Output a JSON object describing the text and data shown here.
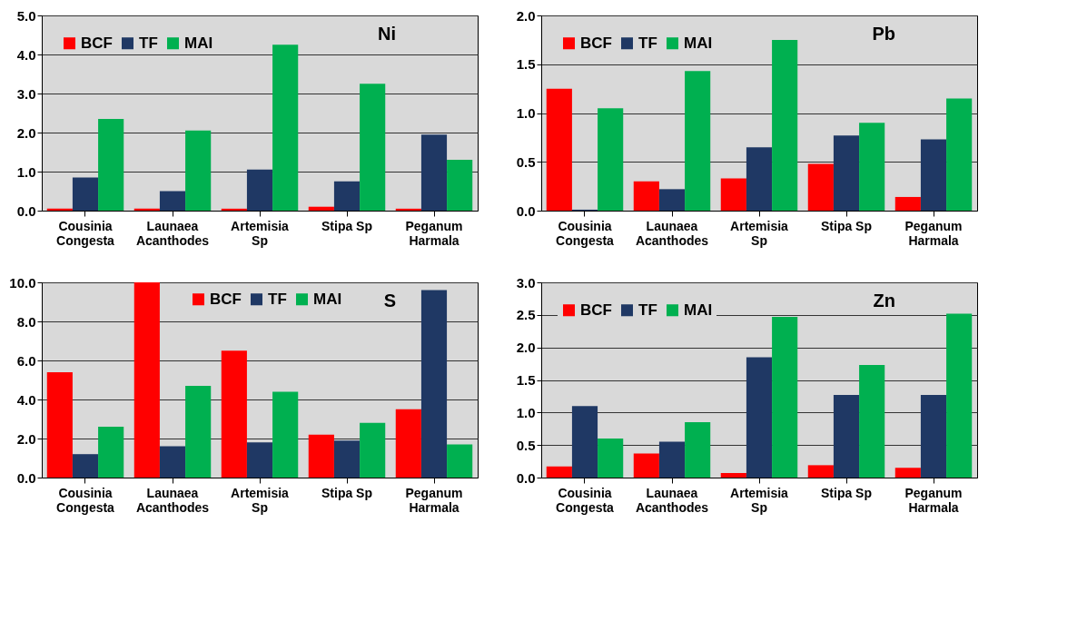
{
  "chart_data": [
    {
      "type": "bar",
      "title": "Ni",
      "categories": [
        "Cousinia\nCongesta",
        "Launaea\nAcanthodes",
        "Artemisia\nSp",
        "Stipa Sp",
        "Peganum\nHarmala"
      ],
      "series": [
        {
          "name": "BCF",
          "color": "#ff0000",
          "values": [
            0.05,
            0.05,
            0.05,
            0.1,
            0.05
          ]
        },
        {
          "name": "TF",
          "color": "#1f3864",
          "values": [
            0.85,
            0.5,
            1.05,
            0.75,
            1.95
          ]
        },
        {
          "name": "MAI",
          "color": "#00b050",
          "values": [
            2.35,
            2.05,
            4.25,
            3.25,
            1.3
          ]
        }
      ],
      "ylim": [
        0,
        5
      ],
      "yticks": [
        {
          "value": 0,
          "label": "0.0"
        },
        {
          "value": 1,
          "label": "1.0"
        },
        {
          "value": 2,
          "label": "2.0"
        },
        {
          "value": 3,
          "label": "3.0"
        },
        {
          "value": 4,
          "label": "4.0"
        },
        {
          "value": 5,
          "label": "5.0"
        }
      ],
      "grid": "y",
      "legend": "top left"
    },
    {
      "type": "bar",
      "title": "Pb",
      "categories": [
        "Cousinia\nCongesta",
        "Launaea\nAcanthodes",
        "Artemisia\nSp",
        "Stipa Sp",
        "Peganum\nHarmala"
      ],
      "series": [
        {
          "name": "BCF",
          "color": "#ff0000",
          "values": [
            1.25,
            0.3,
            0.33,
            0.48,
            0.14
          ]
        },
        {
          "name": "TF",
          "color": "#1f3864",
          "values": [
            0.01,
            0.22,
            0.65,
            0.77,
            0.73
          ]
        },
        {
          "name": "MAI",
          "color": "#00b050",
          "values": [
            1.05,
            1.43,
            1.75,
            0.9,
            1.15
          ]
        }
      ],
      "ylim": [
        0,
        2
      ],
      "yticks": [
        {
          "value": 0,
          "label": "0.0"
        },
        0.5,
        {
          "value": 1,
          "label": "1.0"
        },
        1.5,
        {
          "value": 2,
          "label": "2.0"
        }
      ],
      "grid": "y",
      "legend": "top left"
    },
    {
      "type": "bar",
      "title": "S",
      "categories": [
        "Cousinia\nCongesta",
        "Launaea\nAcanthodes",
        "Artemisia\nSp",
        "Stipa Sp",
        "Peganum\nHarmala"
      ],
      "series": [
        {
          "name": "BCF",
          "color": "#ff0000",
          "values": [
            5.4,
            10.0,
            6.5,
            2.2,
            3.5
          ]
        },
        {
          "name": "TF",
          "color": "#1f3864",
          "values": [
            1.2,
            1.6,
            1.8,
            1.9,
            9.6
          ]
        },
        {
          "name": "MAI",
          "color": "#00b050",
          "values": [
            2.6,
            4.7,
            4.4,
            2.8,
            1.7
          ]
        }
      ],
      "ylim": [
        0,
        10
      ],
      "yticks": [
        {
          "value": 0,
          "label": "0.0"
        },
        {
          "value": 2,
          "label": "2.0"
        },
        {
          "value": 4,
          "label": "4.0"
        },
        {
          "value": 6,
          "label": "6.0"
        },
        {
          "value": 8,
          "label": "8.0"
        },
        {
          "value": 10,
          "label": "10.0"
        }
      ],
      "grid": "y",
      "legend": "top"
    },
    {
      "type": "bar",
      "title": "Zn",
      "categories": [
        "Cousinia\nCongesta",
        "Launaea\nAcanthodes",
        "Artemisia\nSp",
        "Stipa Sp",
        "Peganum\nHarmala"
      ],
      "series": [
        {
          "name": "BCF",
          "color": "#ff0000",
          "values": [
            0.17,
            0.37,
            0.07,
            0.19,
            0.15
          ]
        },
        {
          "name": "TF",
          "color": "#1f3864",
          "values": [
            1.1,
            0.55,
            1.85,
            1.27,
            1.27
          ]
        },
        {
          "name": "MAI",
          "color": "#00b050",
          "values": [
            0.6,
            0.85,
            2.47,
            1.73,
            2.52
          ]
        }
      ],
      "ylim": [
        0,
        3
      ],
      "yticks": [
        {
          "value": 0,
          "label": "0.0"
        },
        0.5,
        {
          "value": 1,
          "label": "1.0"
        },
        1.5,
        {
          "value": 2,
          "label": "2.0"
        },
        2.5,
        {
          "value": 3,
          "label": "3.0"
        }
      ],
      "grid": "y",
      "legend": "top left"
    }
  ]
}
